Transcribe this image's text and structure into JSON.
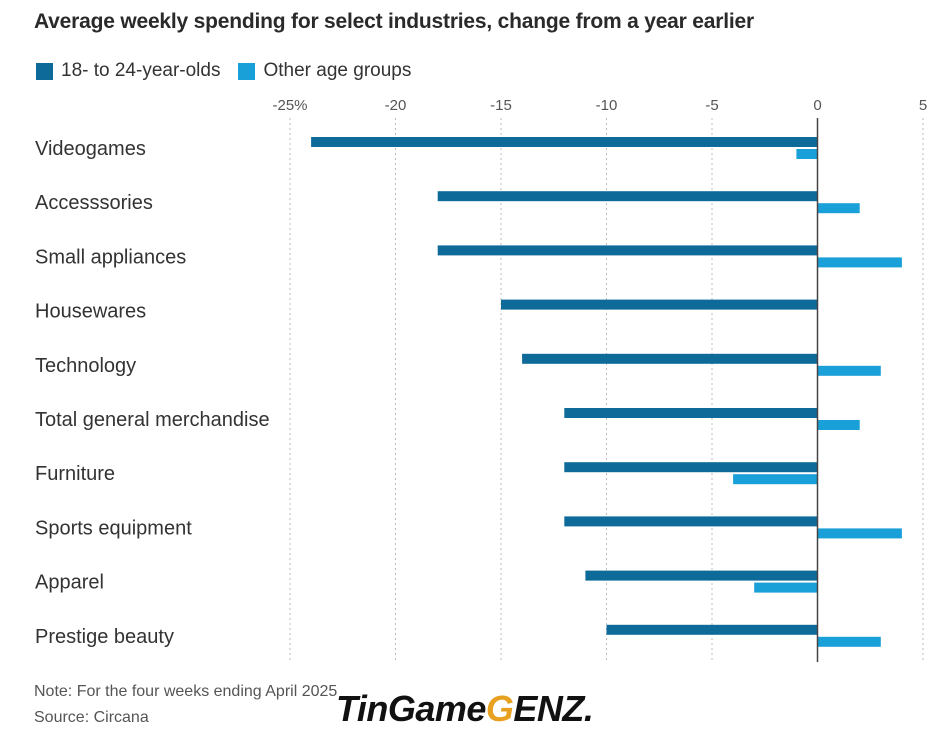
{
  "colors": {
    "series_1": "#0e6a99",
    "series_2": "#1aa0d8",
    "grid": "#bdbdbd",
    "zero_line": "#444444"
  },
  "chart_data": {
    "type": "bar",
    "orientation": "horizontal",
    "title": "Average weekly spending for select industries, change from a year earlier",
    "note": "Note: For the four weeks ending April 2025",
    "source": "Source: Circana",
    "xlim": [
      -25,
      5
    ],
    "x_ticks": [
      "-25%",
      "-20",
      "-15",
      "-10",
      "-5",
      "0",
      "5"
    ],
    "x_tick_values": [
      -25,
      -20,
      -15,
      -10,
      -5,
      0,
      5
    ],
    "grid": true,
    "legend_position": "top-left",
    "categories": [
      "Videogames",
      "Accesssories",
      "Small appliances",
      "Housewares",
      "Technology",
      "Total general merchandise",
      "Furniture",
      "Sports equipment",
      "Apparel",
      "Prestige beauty"
    ],
    "series": [
      {
        "name": "18- to 24-year-olds",
        "values": [
          -24,
          -18,
          -18,
          -15,
          -14,
          -12,
          -12,
          -12,
          -11,
          -10
        ]
      },
      {
        "name": "Other age groups",
        "values": [
          -1,
          2,
          4,
          0,
          3,
          2,
          -4,
          4,
          -3,
          3
        ]
      }
    ]
  },
  "watermark": {
    "text_main": "TinGame",
    "text_accent": "G",
    "text_end": "ENZ."
  }
}
